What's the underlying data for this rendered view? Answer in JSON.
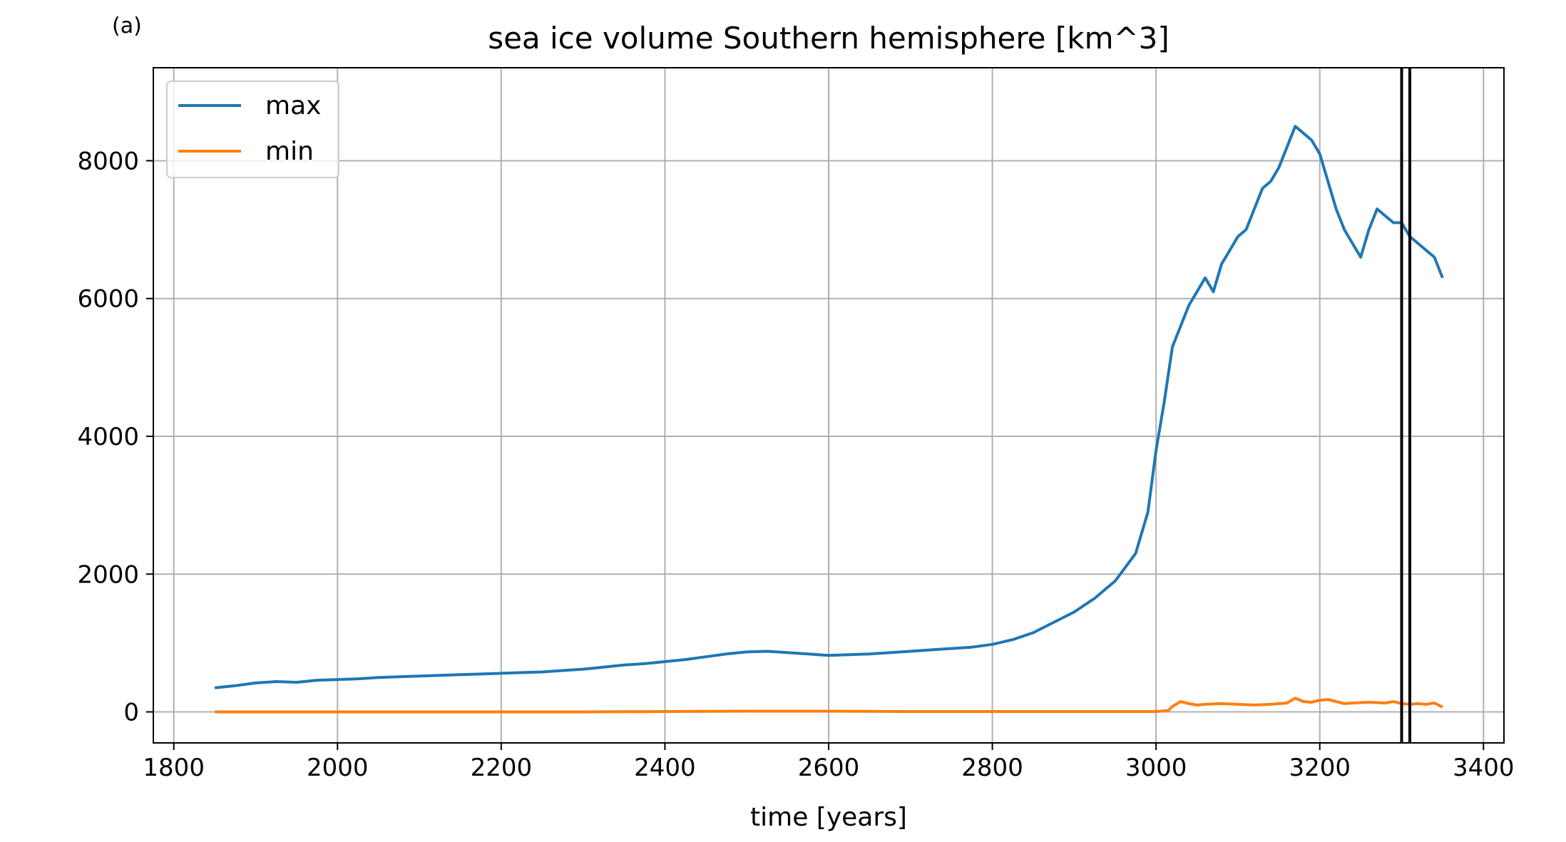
{
  "chart_data": {
    "type": "line",
    "panel_label": "(a)",
    "title": "sea ice volume Southern hemisphere [km^3]",
    "xlabel": "time [years]",
    "ylabel": "",
    "xlim": [
      1775,
      3425
    ],
    "ylim": [
      -450,
      9350
    ],
    "x_ticks": [
      1800,
      2000,
      2200,
      2400,
      2600,
      2800,
      3000,
      3200,
      3400
    ],
    "y_ticks": [
      0,
      2000,
      4000,
      6000,
      8000
    ],
    "grid": true,
    "legend_position": "top-left",
    "vertical_lines": [
      3300,
      3310
    ],
    "vertical_line_color": "#000000",
    "series": [
      {
        "name": "max",
        "color": "#1f77b4",
        "x": [
          1850,
          1875,
          1900,
          1925,
          1950,
          1975,
          2000,
          2025,
          2050,
          2075,
          2100,
          2125,
          2150,
          2175,
          2200,
          2225,
          2250,
          2275,
          2300,
          2325,
          2350,
          2375,
          2400,
          2425,
          2450,
          2475,
          2500,
          2525,
          2550,
          2575,
          2600,
          2625,
          2650,
          2675,
          2700,
          2725,
          2750,
          2775,
          2800,
          2825,
          2850,
          2875,
          2900,
          2925,
          2950,
          2975,
          2990,
          3000,
          3010,
          3020,
          3030,
          3040,
          3050,
          3060,
          3070,
          3080,
          3090,
          3100,
          3110,
          3120,
          3130,
          3140,
          3150,
          3160,
          3170,
          3180,
          3190,
          3200,
          3210,
          3220,
          3230,
          3240,
          3250,
          3260,
          3270,
          3280,
          3290,
          3300,
          3310,
          3320,
          3330,
          3340,
          3350
        ],
        "values": [
          350,
          380,
          420,
          440,
          430,
          460,
          470,
          480,
          500,
          510,
          520,
          530,
          540,
          550,
          560,
          570,
          580,
          600,
          620,
          650,
          680,
          700,
          730,
          760,
          800,
          840,
          870,
          880,
          860,
          840,
          820,
          830,
          840,
          860,
          880,
          900,
          920,
          940,
          980,
          1050,
          1150,
          1300,
          1450,
          1650,
          1900,
          2300,
          2900,
          3800,
          4500,
          5300,
          5600,
          5900,
          6100,
          6300,
          6100,
          6500,
          6700,
          6900,
          7000,
          7300,
          7600,
          7700,
          7900,
          8200,
          8500,
          8400,
          8300,
          8100,
          7700,
          7300,
          7000,
          6800,
          6600,
          7000,
          7300,
          7200,
          7100,
          7100,
          6900,
          6800,
          6700,
          6600,
          6300
        ]
      },
      {
        "name": "min",
        "color": "#ff7f0e",
        "x": [
          1850,
          1900,
          1950,
          2000,
          2100,
          2200,
          2300,
          2400,
          2500,
          2600,
          2700,
          2800,
          2900,
          2950,
          3000,
          3015,
          3020,
          3030,
          3040,
          3050,
          3060,
          3080,
          3100,
          3120,
          3140,
          3160,
          3170,
          3180,
          3190,
          3200,
          3210,
          3220,
          3230,
          3240,
          3260,
          3280,
          3290,
          3300,
          3310,
          3320,
          3330,
          3340,
          3350
        ],
        "values": [
          0,
          0,
          0,
          0,
          0,
          0,
          0,
          5,
          10,
          10,
          5,
          5,
          5,
          5,
          5,
          20,
          80,
          150,
          120,
          100,
          110,
          120,
          110,
          100,
          110,
          130,
          200,
          150,
          140,
          170,
          180,
          150,
          120,
          130,
          140,
          130,
          150,
          120,
          110,
          120,
          110,
          130,
          70
        ]
      }
    ]
  }
}
